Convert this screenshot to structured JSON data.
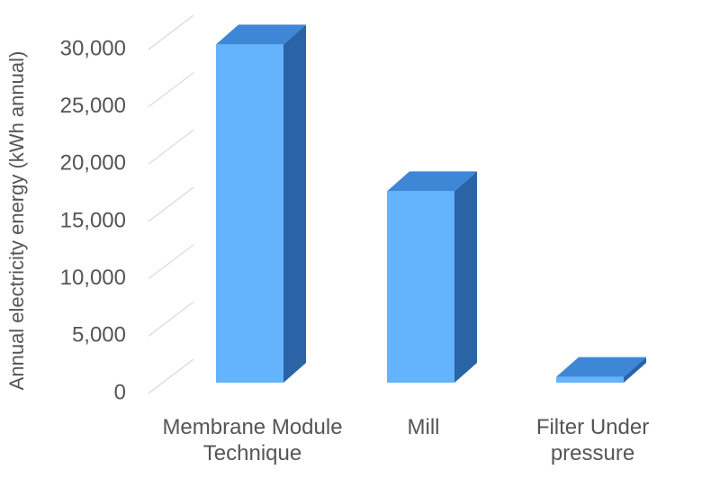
{
  "chart_data": {
    "type": "bar3d",
    "y_label": "Annual electricity energy (kWh annual)",
    "categories": [
      "Membrane Module Technique",
      "Mill",
      "Filter Under pressure"
    ],
    "values": [
      29500,
      16700,
      500
    ],
    "color": "#63b3fd",
    "ylim": [
      0,
      30000
    ],
    "yticks": [
      0,
      {
        "value": 5000,
        "label": "5,000"
      },
      {
        "value": 10000,
        "label": "10,000"
      },
      {
        "value": 15000,
        "label": "15,000"
      },
      {
        "value": 20000,
        "label": "20,000"
      },
      {
        "value": 25000,
        "label": "25,000"
      },
      {
        "value": 30000,
        "label": "30,000"
      }
    ],
    "grid": true
  }
}
